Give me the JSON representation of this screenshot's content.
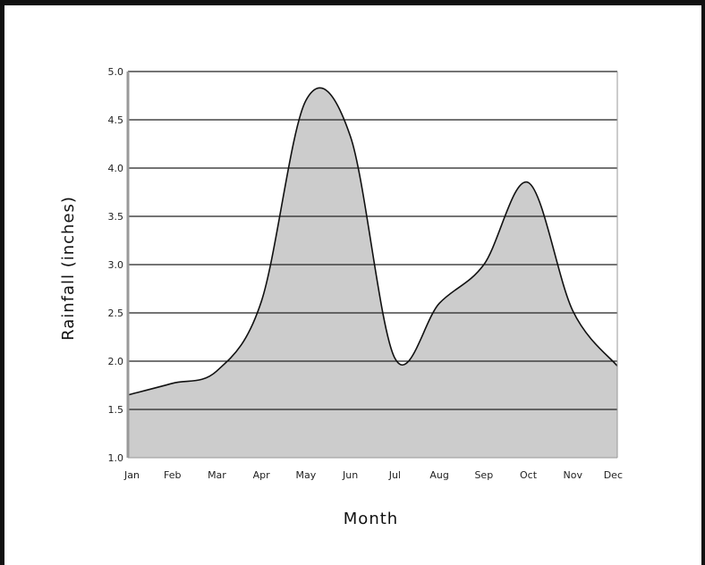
{
  "chart_data": {
    "type": "area",
    "title": "",
    "xlabel": "Month",
    "ylabel": "Rainfall (inches)",
    "categories": [
      "Jan",
      "Feb",
      "Mar",
      "Apr",
      "May",
      "Jun",
      "Jul",
      "Aug",
      "Sep",
      "Oct",
      "Nov",
      "Dec"
    ],
    "values": [
      1.65,
      1.77,
      1.9,
      2.62,
      4.7,
      4.33,
      2.03,
      2.6,
      3.0,
      3.85,
      2.52,
      1.95
    ],
    "ylim": [
      1.0,
      5.0
    ],
    "yticks": [
      "1.0",
      "1.5",
      "2.0",
      "2.5",
      "3.0",
      "3.5",
      "4.0",
      "4.5",
      "5.0"
    ],
    "grid": true,
    "legend": "none",
    "colors": {
      "fill": "#cccccc",
      "line": "#111111",
      "grid": "#222222",
      "axis": "#999999"
    }
  }
}
